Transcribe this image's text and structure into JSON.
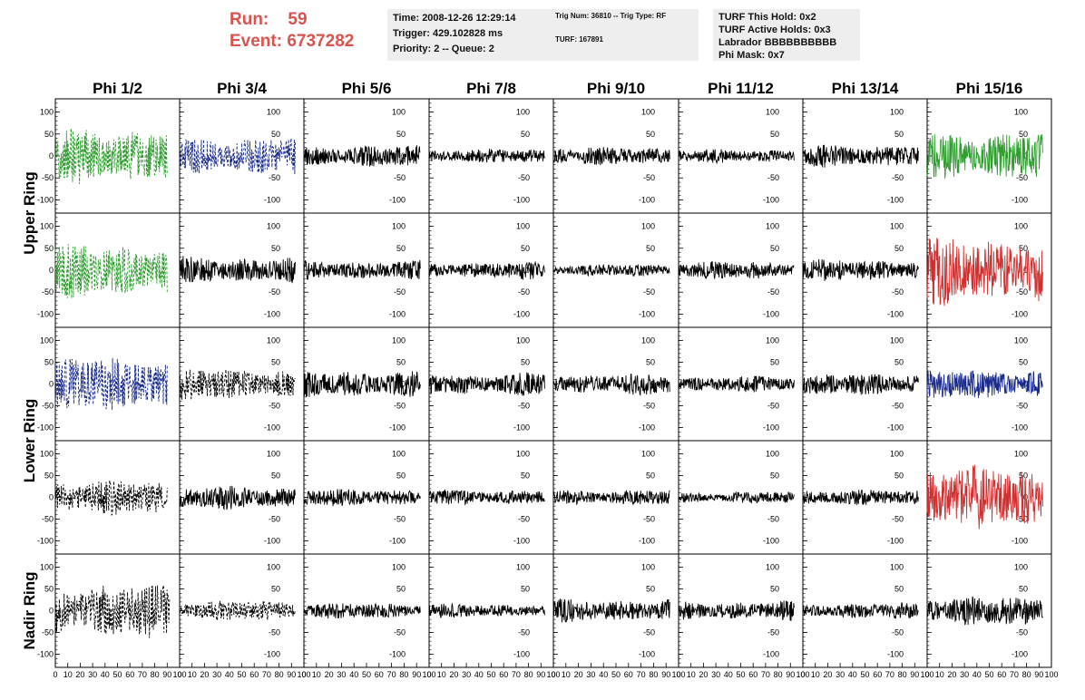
{
  "header": {
    "run_label": "Run:",
    "run_value": "59",
    "event_label": "Event:",
    "event_value": "6737282",
    "time": "Time: 2008-12-26 12:29:14",
    "trigger": "Trigger: 429.102828 ms",
    "priority": "Priority: 2 -- Queue: 2",
    "trig_num": "Trig Num: 36810 -- Trig Type: RF",
    "turf": "TURF: 167891",
    "turf_this_hold": "TURF This Hold: 0x2",
    "turf_active_holds": "TURF Active Holds: 0x3",
    "labrador": "Labrador BBBBBBBBBB",
    "phi_mask": "Phi Mask: 0x7"
  },
  "chart_data": {
    "type": "line",
    "columns": [
      "Phi 1/2",
      "Phi 3/4",
      "Phi 5/6",
      "Phi 7/8",
      "Phi 9/10",
      "Phi 11/12",
      "Phi 13/14",
      "Phi 15/16"
    ],
    "rows": [
      "Upper Ring",
      "Lower Ring",
      "Nadir Ring"
    ],
    "ylim": [
      -130,
      130
    ],
    "yticks": [
      -100,
      -50,
      0,
      50,
      100
    ],
    "xlim": [
      0,
      100
    ],
    "xticks": [
      0,
      10,
      20,
      30,
      40,
      50,
      60,
      70,
      80,
      90,
      100
    ],
    "panels": [
      [
        {
          "color": "#2e9e2e",
          "dashed": true,
          "amp": 60,
          "extent": 90
        },
        {
          "color": "#1a2b8c",
          "dashed": true,
          "amp": 40,
          "extent": 93
        },
        {
          "color": "#000000",
          "dashed": false,
          "amp": 22,
          "extent": 93
        },
        {
          "color": "#000000",
          "dashed": false,
          "amp": 14,
          "extent": 93
        },
        {
          "color": "#000000",
          "dashed": false,
          "amp": 18,
          "extent": 93
        },
        {
          "color": "#000000",
          "dashed": false,
          "amp": 14,
          "extent": 93
        },
        {
          "color": "#000000",
          "dashed": false,
          "amp": 24,
          "extent": 93
        },
        {
          "color": "#2e9e2e",
          "dashed": false,
          "amp": 50,
          "extent": 93
        }
      ],
      [
        {
          "color": "#2e9e2e",
          "dashed": true,
          "amp": 55,
          "extent": 90
        },
        {
          "color": "#000000",
          "dashed": false,
          "amp": 28,
          "extent": 93
        },
        {
          "color": "#000000",
          "dashed": false,
          "amp": 20,
          "extent": 93
        },
        {
          "color": "#000000",
          "dashed": false,
          "amp": 18,
          "extent": 93
        },
        {
          "color": "#000000",
          "dashed": false,
          "amp": 12,
          "extent": 93
        },
        {
          "color": "#000000",
          "dashed": false,
          "amp": 18,
          "extent": 93
        },
        {
          "color": "#000000",
          "dashed": false,
          "amp": 22,
          "extent": 93
        },
        {
          "color": "#d03030",
          "dashed": false,
          "amp": 70,
          "extent": 93
        }
      ],
      [
        {
          "color": "#1a2b8c",
          "dashed": true,
          "amp": 55,
          "extent": 90
        },
        {
          "color": "#000000",
          "dashed": true,
          "amp": 32,
          "extent": 93
        },
        {
          "color": "#000000",
          "dashed": false,
          "amp": 28,
          "extent": 93
        },
        {
          "color": "#000000",
          "dashed": false,
          "amp": 24,
          "extent": 93
        },
        {
          "color": "#000000",
          "dashed": false,
          "amp": 22,
          "extent": 93
        },
        {
          "color": "#000000",
          "dashed": false,
          "amp": 16,
          "extent": 93
        },
        {
          "color": "#000000",
          "dashed": false,
          "amp": 22,
          "extent": 93
        },
        {
          "color": "#1a2b8c",
          "dashed": false,
          "amp": 30,
          "extent": 93
        }
      ],
      [
        {
          "color": "#000000",
          "dashed": true,
          "amp": 35,
          "extent": 90
        },
        {
          "color": "#000000",
          "dashed": false,
          "amp": 24,
          "extent": 93
        },
        {
          "color": "#000000",
          "dashed": false,
          "amp": 18,
          "extent": 93
        },
        {
          "color": "#000000",
          "dashed": false,
          "amp": 16,
          "extent": 93
        },
        {
          "color": "#000000",
          "dashed": false,
          "amp": 16,
          "extent": 93
        },
        {
          "color": "#000000",
          "dashed": false,
          "amp": 12,
          "extent": 93
        },
        {
          "color": "#000000",
          "dashed": false,
          "amp": 16,
          "extent": 93
        },
        {
          "color": "#d03030",
          "dashed": false,
          "amp": 65,
          "extent": 93
        }
      ],
      [
        {
          "color": "#000000",
          "dashed": true,
          "amp": 55,
          "extent": 92
        },
        {
          "color": "#000000",
          "dashed": true,
          "amp": 20,
          "extent": 93
        },
        {
          "color": "#000000",
          "dashed": false,
          "amp": 16,
          "extent": 93
        },
        {
          "color": "#000000",
          "dashed": false,
          "amp": 14,
          "extent": 93
        },
        {
          "color": "#000000",
          "dashed": false,
          "amp": 24,
          "extent": 93
        },
        {
          "color": "#000000",
          "dashed": false,
          "amp": 20,
          "extent": 93
        },
        {
          "color": "#000000",
          "dashed": false,
          "amp": 16,
          "extent": 93
        },
        {
          "color": "#000000",
          "dashed": false,
          "amp": 30,
          "extent": 93
        }
      ]
    ]
  }
}
